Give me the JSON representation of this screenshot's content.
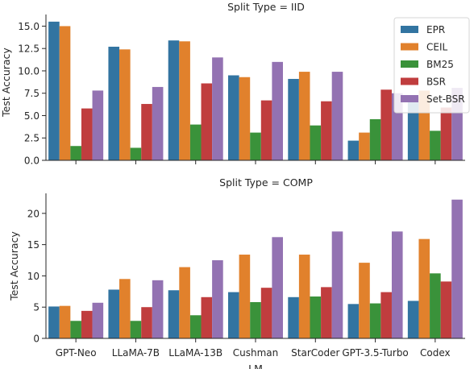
{
  "figure": {
    "xlabel": "LM",
    "ylabel": "Test Accuracy"
  },
  "colors": {
    "EPR": "#3274a1",
    "CEIL": "#e1812c",
    "BM25": "#3a923a",
    "BSR": "#c03d3e",
    "Set-BSR": "#9372b2"
  },
  "chart_data": [
    {
      "type": "bar",
      "title": "Split Type = IID",
      "ylabel": "Test Accuracy",
      "categories": [
        "GPT-Neo",
        "LLaMA-7B",
        "LLaMA-13B",
        "Cushman",
        "StarCoder",
        "GPT-3.5-Turbo",
        "Codex"
      ],
      "ylim": [
        0,
        16.3
      ],
      "yticks": [
        "0.0",
        "2.5",
        "5.0",
        "7.5",
        "10.0",
        "12.5",
        "15.0"
      ],
      "legend": {
        "placement": "top-right",
        "entries": [
          "EPR",
          "CEIL",
          "BM25",
          "BSR",
          "Set-BSR"
        ]
      },
      "series": [
        {
          "name": "EPR",
          "values": [
            15.5,
            12.7,
            13.4,
            9.5,
            9.1,
            2.2,
            7.1
          ]
        },
        {
          "name": "CEIL",
          "values": [
            15.0,
            12.4,
            13.3,
            9.3,
            9.9,
            3.1,
            7.8
          ]
        },
        {
          "name": "BM25",
          "values": [
            1.6,
            1.4,
            4.0,
            3.1,
            3.9,
            4.6,
            3.3
          ]
        },
        {
          "name": "BSR",
          "values": [
            5.8,
            6.3,
            8.6,
            6.7,
            6.6,
            7.9,
            5.9
          ]
        },
        {
          "name": "Set-BSR",
          "values": [
            7.8,
            8.2,
            11.5,
            11.0,
            9.9,
            7.5,
            8.1
          ]
        }
      ]
    },
    {
      "type": "bar",
      "title": "Split Type = COMP",
      "ylabel": "Test Accuracy",
      "xlabel": "LM",
      "categories": [
        "GPT-Neo",
        "LLaMA-7B",
        "LLaMA-13B",
        "Cushman",
        "StarCoder",
        "GPT-3.5-Turbo",
        "Codex"
      ],
      "ylim": [
        0,
        23.2
      ],
      "yticks": [
        "0",
        "5",
        "10",
        "15",
        "20"
      ],
      "series": [
        {
          "name": "EPR",
          "values": [
            5.1,
            7.8,
            7.7,
            7.4,
            6.6,
            5.5,
            6.0
          ]
        },
        {
          "name": "CEIL",
          "values": [
            5.2,
            9.5,
            11.4,
            13.4,
            13.4,
            12.1,
            15.9
          ]
        },
        {
          "name": "BM25",
          "values": [
            2.8,
            2.8,
            3.7,
            5.8,
            6.7,
            5.6,
            10.4
          ]
        },
        {
          "name": "BSR",
          "values": [
            4.4,
            5.0,
            6.6,
            8.1,
            8.2,
            7.4,
            9.1
          ]
        },
        {
          "name": "Set-BSR",
          "values": [
            5.7,
            9.3,
            12.5,
            16.2,
            17.1,
            17.1,
            22.2
          ]
        }
      ]
    }
  ]
}
